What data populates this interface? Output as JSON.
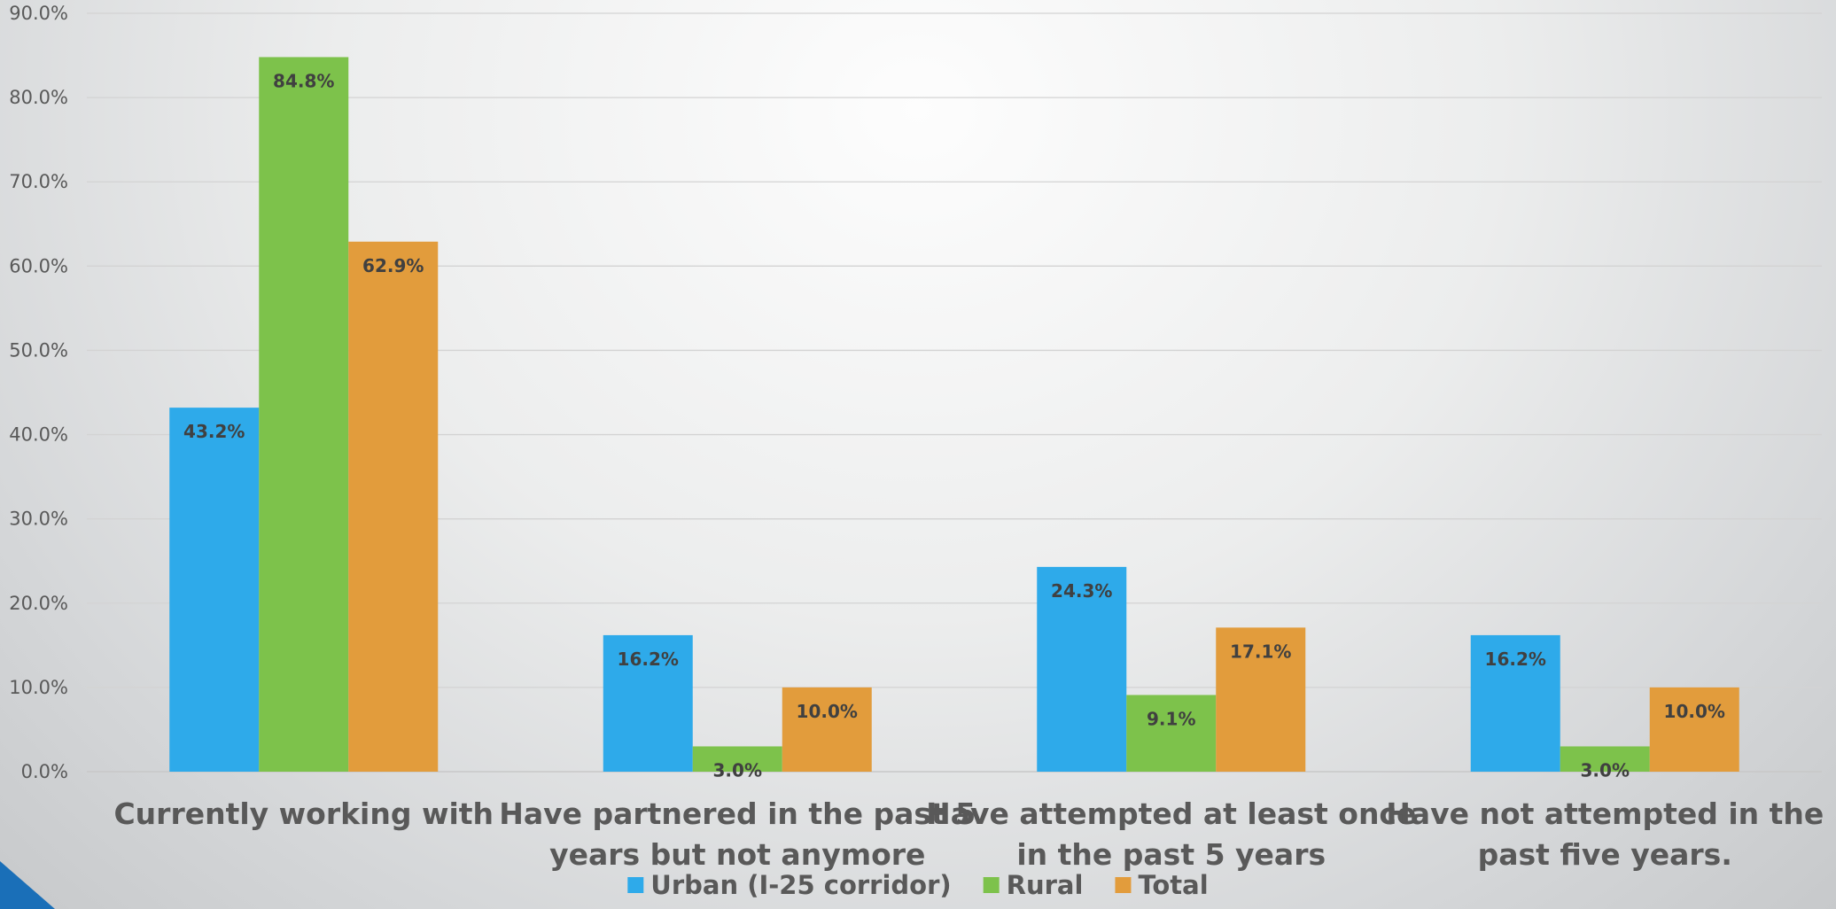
{
  "theme": {
    "accent_triangle": "#1a6fb8",
    "gridline": "#d3d3d3",
    "label_text": "#404040",
    "axis_text": "#595959"
  },
  "chart_data": {
    "type": "bar",
    "title": "",
    "xlabel": "",
    "ylabel": "",
    "ylim": [
      0,
      90
    ],
    "ytick_step": 10,
    "ytick_labels": [
      "0.0%",
      "10.0%",
      "20.0%",
      "30.0%",
      "40.0%",
      "50.0%",
      "60.0%",
      "70.0%",
      "80.0%",
      "90.0%"
    ],
    "grid": true,
    "legend_position": "bottom",
    "categories": [
      [
        "Currently working with"
      ],
      [
        "Have partnered in the past 5",
        "years but not anymore"
      ],
      [
        "Have attempted at least once",
        "in the past 5 years"
      ],
      [
        "Have not attempted in the",
        "past five years."
      ]
    ],
    "series": [
      {
        "name": "Urban (I-25 corridor)",
        "color": "#2eaaea",
        "values": [
          43.2,
          16.2,
          24.3,
          16.2
        ],
        "labels": [
          "43.2%",
          "16.2%",
          "24.3%",
          "16.2%"
        ]
      },
      {
        "name": "Rural",
        "color": "#7dc24b",
        "values": [
          84.8,
          3.0,
          9.1,
          3.0
        ],
        "labels": [
          "84.8%",
          "3.0%",
          "9.1%",
          "3.0%"
        ]
      },
      {
        "name": "Total",
        "color": "#e29c3c",
        "values": [
          62.9,
          10.0,
          17.1,
          10.0
        ],
        "labels": [
          "62.9%",
          "10.0%",
          "17.1%",
          "10.0%"
        ]
      }
    ]
  }
}
